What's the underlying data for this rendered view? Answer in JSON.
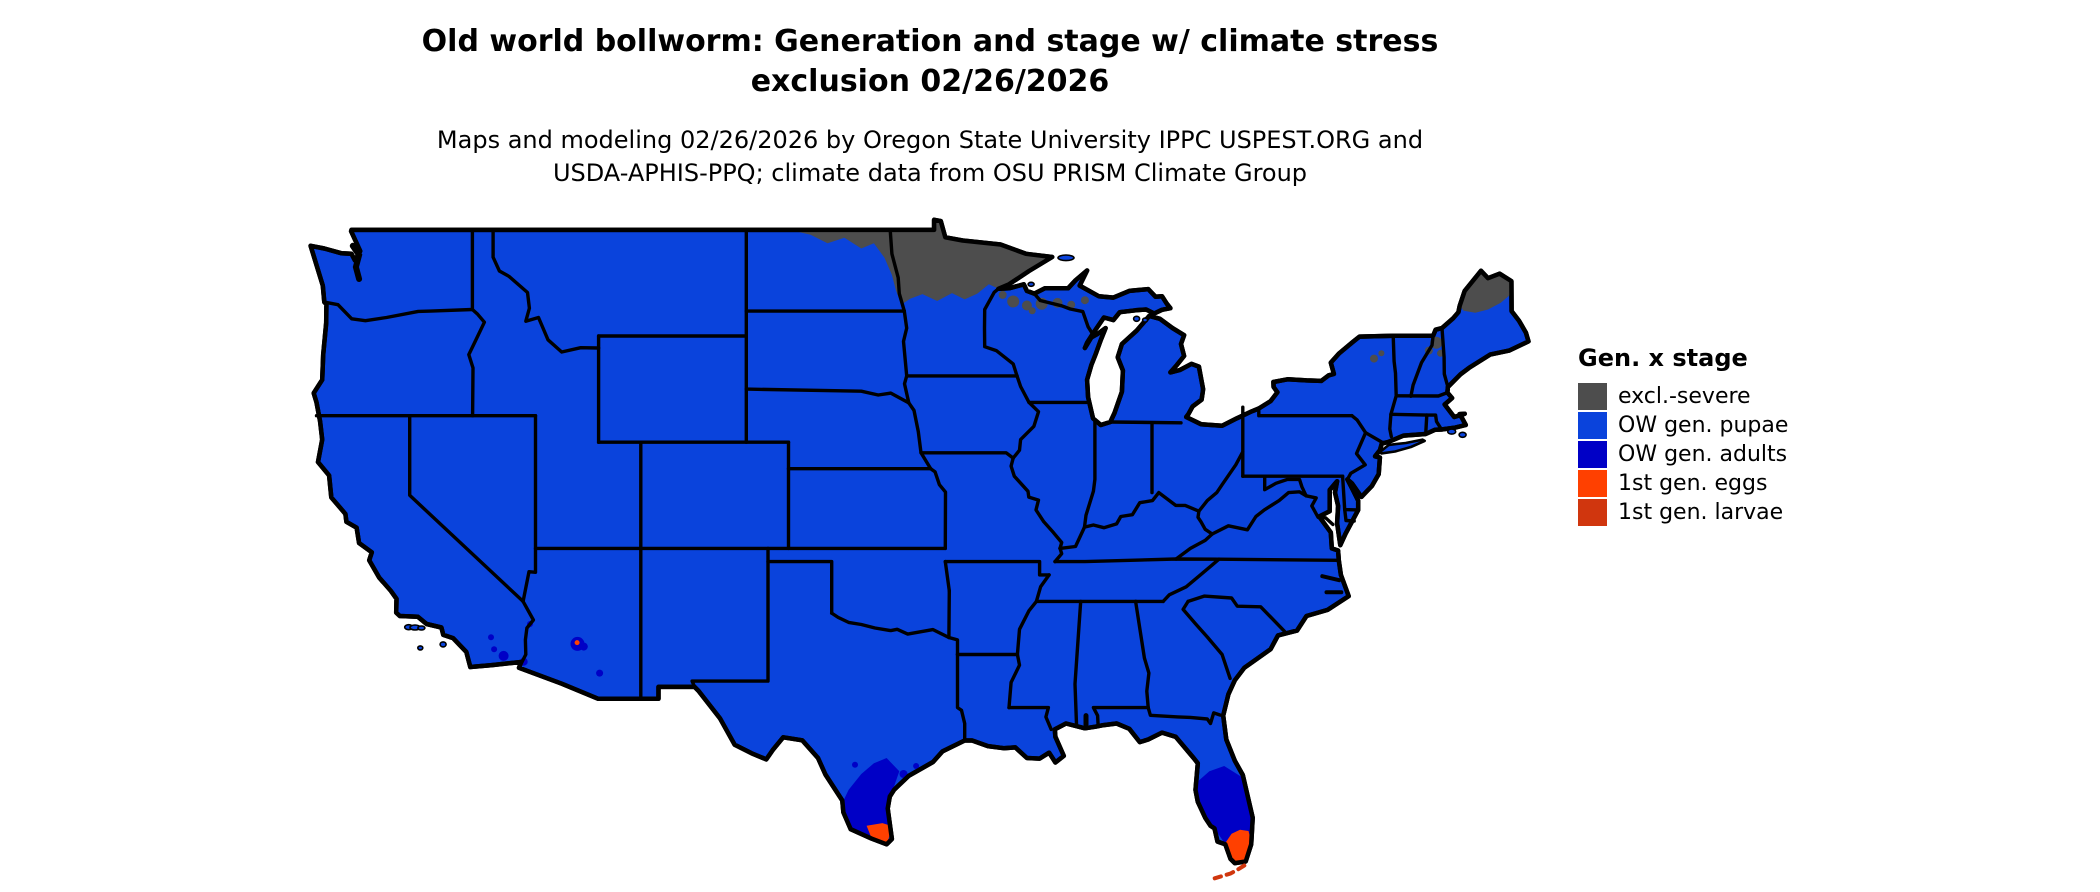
{
  "page": {
    "background": "#FFFFFF"
  },
  "header": {
    "title_line1": "Old world bollworm: Generation and stage w/ climate stress",
    "title_line2": "exclusion 02/26/2026",
    "subtitle_line1": "Maps and modeling 02/26/2026 by Oregon State University IPPC USPEST.ORG and",
    "subtitle_line2": "USDA-APHIS-PPQ; climate data from OSU PRISM Climate Group"
  },
  "legend": {
    "title": "Gen. x stage",
    "items": [
      {
        "key": "excl",
        "label": "excl.-severe",
        "color": "#4D4D4D"
      },
      {
        "key": "pupae",
        "label": "OW gen. pupae",
        "color": "#0A43DC"
      },
      {
        "key": "adults",
        "label": "OW gen. adults",
        "color": "#0000C6"
      },
      {
        "key": "eggs",
        "label": "1st gen. eggs",
        "color": "#FF4000"
      },
      {
        "key": "larvae",
        "label": "1st gen. larvae",
        "color": "#D0360E"
      }
    ]
  },
  "map": {
    "border_color": "#000000",
    "water_color": "#FFFFFF",
    "default_class": "OW gen. pupae",
    "regions": [
      {
        "area": "Contiguous United States (most areas)",
        "stage_class": "OW gen. pupae"
      },
      {
        "area": "Northern Minnesota and northeastern North Dakota",
        "stage_class": "excl.-severe"
      },
      {
        "area": "Far northern Wisconsin and upper Michigan (scattered)",
        "stage_class": "excl.-severe"
      },
      {
        "area": "Northern Maine and northern New Hampshire mountains",
        "stage_class": "excl.-severe"
      },
      {
        "area": "South Texas / lower Rio Grande Valley and coastal bend",
        "stage_class": "OW gen. adults"
      },
      {
        "area": "Southernmost tip of Texas",
        "stage_class": "1st gen. eggs"
      },
      {
        "area": "South-central Florida peninsula",
        "stage_class": "OW gen. adults"
      },
      {
        "area": "Southern tip of Florida",
        "stage_class": "1st gen. eggs"
      },
      {
        "area": "Florida Keys",
        "stage_class": "1st gen. larvae"
      },
      {
        "area": "Scattered low-desert spots in southern Arizona and southeastern California",
        "stage_class": "OW gen. adults"
      }
    ]
  }
}
